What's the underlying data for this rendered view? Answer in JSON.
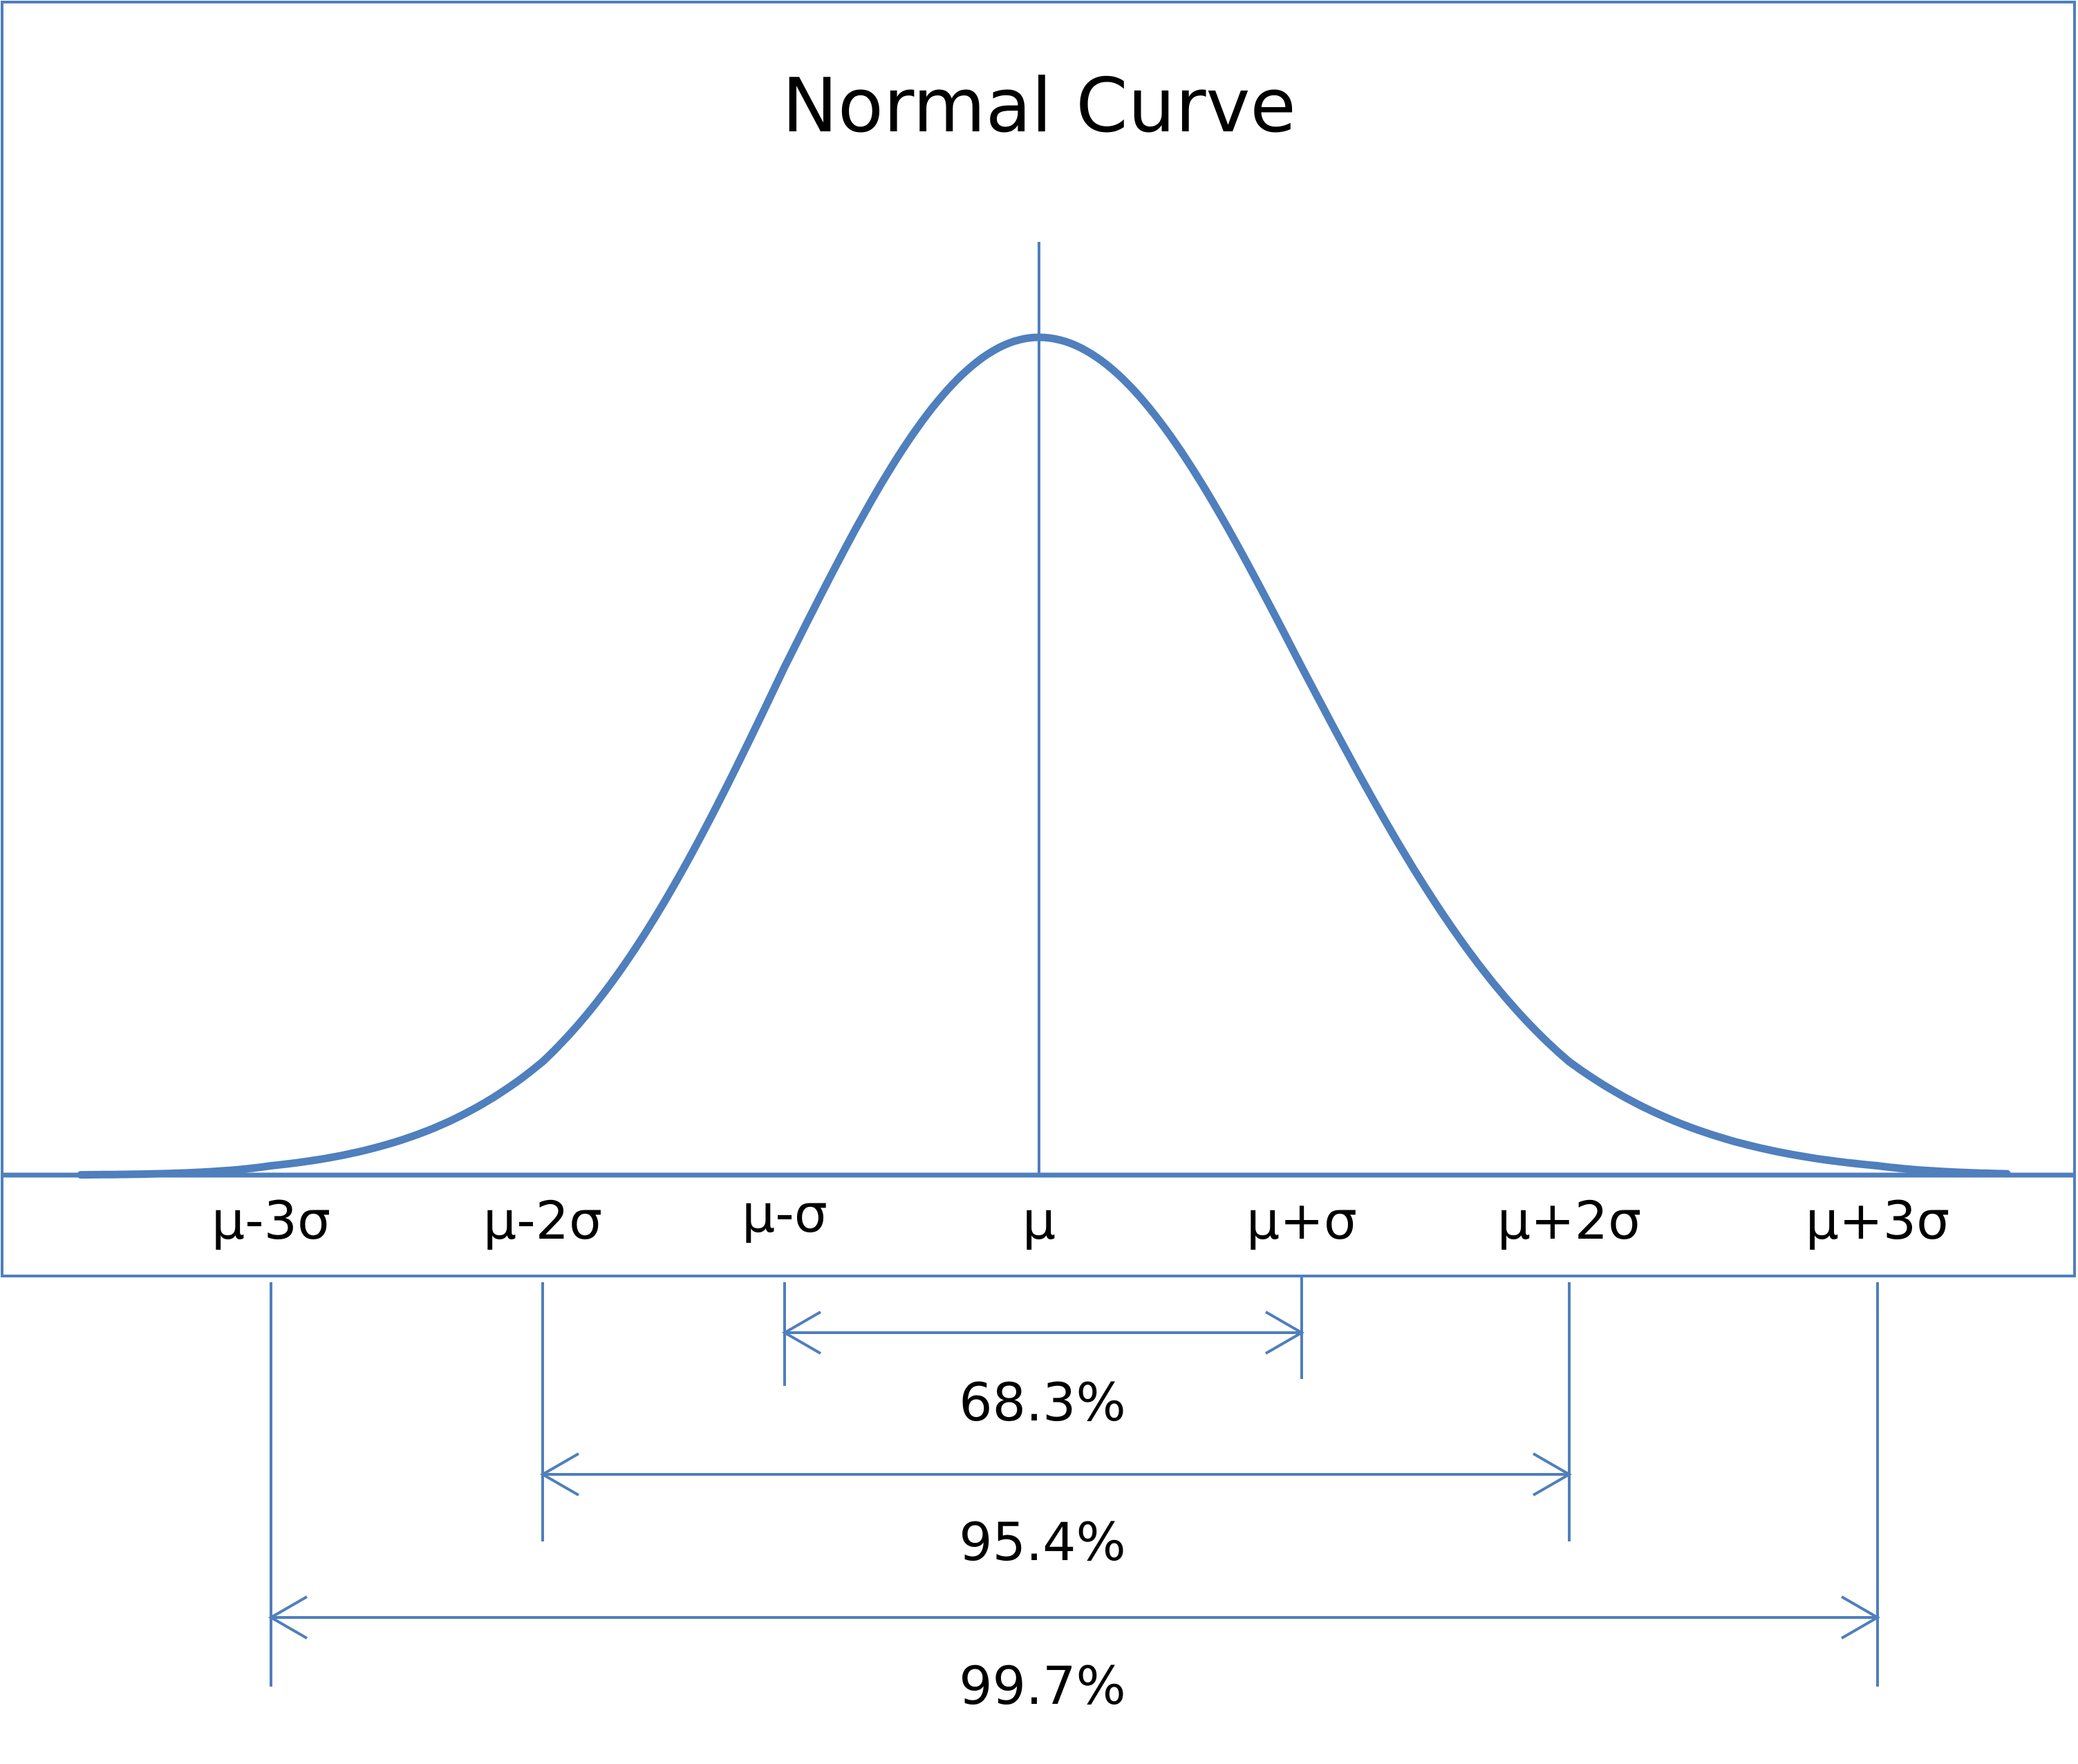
{
  "title": "Normal Curve",
  "colors": {
    "curve": "#4f7fbd",
    "lines": "#4f7fbd",
    "frame": "#4f7fbd",
    "text": "#000000",
    "background": "#ffffff"
  },
  "axis": {
    "tick_labels": [
      "μ-3σ",
      "μ-2σ",
      "μ-σ",
      "μ",
      "μ+σ",
      "μ+2σ",
      "μ+3σ"
    ],
    "sigma_positions": [
      -3,
      -2,
      -1,
      0,
      1,
      2,
      3
    ]
  },
  "ranges": [
    {
      "from_sigma": -1,
      "to_sigma": 1,
      "label": "68.3%"
    },
    {
      "from_sigma": -2,
      "to_sigma": 2,
      "label": "95.4%"
    },
    {
      "from_sigma": -3,
      "to_sigma": 3,
      "label": "99.7%"
    }
  ]
}
